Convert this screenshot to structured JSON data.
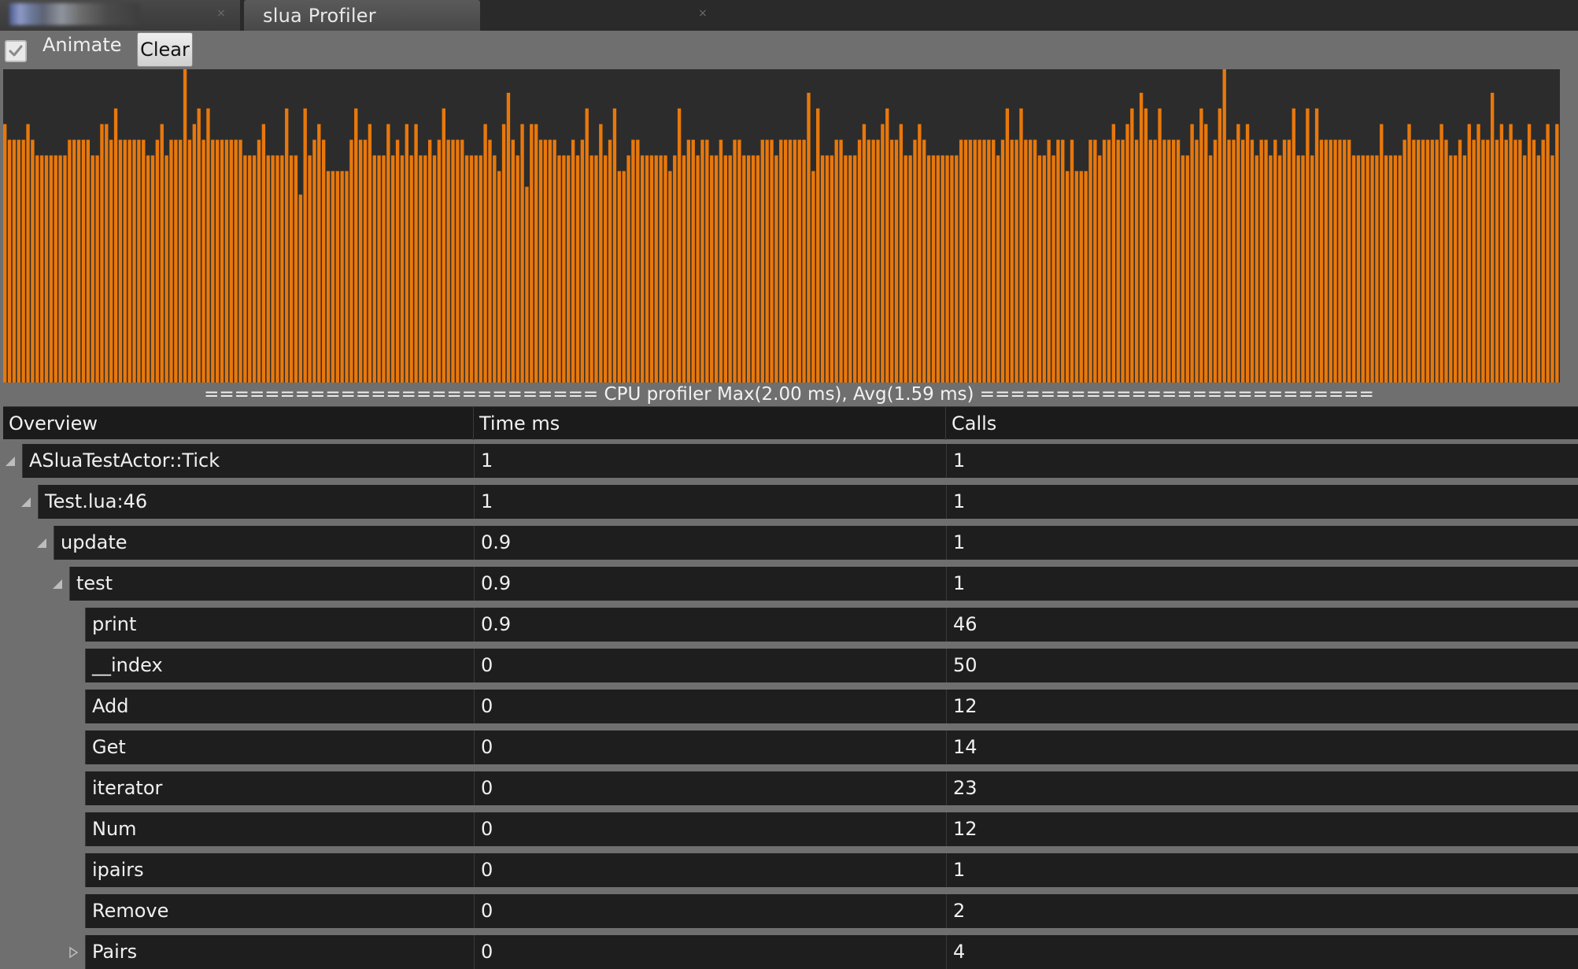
{
  "tabs": [
    {
      "label": "",
      "close_glyph": "×"
    },
    {
      "label": "slua Profiler",
      "close_glyph": "×"
    }
  ],
  "toolbar": {
    "animate_label": "Animate",
    "animate_checked": true,
    "clear_label": "Clear"
  },
  "colors": {
    "bar_fill": "#e8780c",
    "bar_background": "#2c2c2c",
    "panel_bg": "#6f6f6f"
  },
  "chart_data": {
    "type": "bar",
    "title": "",
    "xlabel": "",
    "ylabel": "",
    "ylim": [
      0,
      2.0
    ],
    "grid": false,
    "values": [
      1.65,
      1.55,
      1.55,
      1.55,
      1.55,
      1.65,
      1.55,
      1.45,
      1.45,
      1.45,
      1.45,
      1.45,
      1.45,
      1.45,
      1.55,
      1.55,
      1.55,
      1.55,
      1.55,
      1.45,
      1.45,
      1.65,
      1.65,
      1.55,
      1.75,
      1.55,
      1.55,
      1.55,
      1.55,
      1.55,
      1.55,
      1.45,
      1.45,
      1.55,
      1.65,
      1.45,
      1.55,
      1.55,
      1.55,
      2.0,
      1.55,
      1.65,
      1.75,
      1.55,
      1.75,
      1.55,
      1.55,
      1.55,
      1.55,
      1.55,
      1.55,
      1.55,
      1.45,
      1.45,
      1.45,
      1.55,
      1.65,
      1.45,
      1.45,
      1.45,
      1.45,
      1.75,
      1.45,
      1.45,
      1.2,
      1.75,
      1.45,
      1.55,
      1.65,
      1.55,
      1.35,
      1.35,
      1.35,
      1.35,
      1.35,
      1.55,
      1.75,
      1.55,
      1.55,
      1.65,
      1.45,
      1.45,
      1.45,
      1.65,
      1.45,
      1.55,
      1.45,
      1.65,
      1.45,
      1.65,
      1.45,
      1.45,
      1.55,
      1.45,
      1.55,
      1.75,
      1.55,
      1.55,
      1.55,
      1.55,
      1.45,
      1.45,
      1.45,
      1.45,
      1.65,
      1.55,
      1.45,
      1.35,
      1.65,
      1.85,
      1.55,
      1.45,
      1.65,
      1.25,
      1.65,
      1.65,
      1.55,
      1.55,
      1.55,
      1.55,
      1.45,
      1.45,
      1.45,
      1.55,
      1.45,
      1.55,
      1.75,
      1.45,
      1.45,
      1.65,
      1.45,
      1.55,
      1.75,
      1.35,
      1.35,
      1.45,
      1.55,
      1.55,
      1.45,
      1.45,
      1.45,
      1.45,
      1.45,
      1.45,
      1.35,
      1.45,
      1.75,
      1.45,
      1.55,
      1.55,
      1.45,
      1.55,
      1.55,
      1.45,
      1.45,
      1.55,
      1.45,
      1.45,
      1.55,
      1.55,
      1.45,
      1.45,
      1.45,
      1.45,
      1.55,
      1.55,
      1.55,
      1.45,
      1.55,
      1.55,
      1.55,
      1.55,
      1.55,
      1.55,
      1.85,
      1.35,
      1.75,
      1.45,
      1.45,
      1.45,
      1.55,
      1.55,
      1.45,
      1.45,
      1.45,
      1.55,
      1.65,
      1.55,
      1.55,
      1.55,
      1.65,
      1.75,
      1.55,
      1.55,
      1.65,
      1.45,
      1.45,
      1.55,
      1.65,
      1.55,
      1.45,
      1.45,
      1.45,
      1.45,
      1.45,
      1.45,
      1.45,
      1.55,
      1.55,
      1.55,
      1.55,
      1.55,
      1.55,
      1.55,
      1.55,
      1.45,
      1.55,
      1.75,
      1.55,
      1.55,
      1.75,
      1.55,
      1.55,
      1.55,
      1.45,
      1.45,
      1.55,
      1.45,
      1.55,
      1.55,
      1.35,
      1.55,
      1.35,
      1.35,
      1.35,
      1.55,
      1.55,
      1.45,
      1.55,
      1.55,
      1.65,
      1.55,
      1.55,
      1.65,
      1.75,
      1.55,
      1.85,
      1.75,
      1.55,
      1.55,
      1.75,
      1.55,
      1.55,
      1.55,
      1.55,
      1.45,
      1.45,
      1.65,
      1.55,
      1.75,
      1.65,
      1.45,
      1.55,
      1.75,
      2.0,
      1.55,
      1.55,
      1.65,
      1.55,
      1.65,
      1.55,
      1.45,
      1.55,
      1.55,
      1.45,
      1.55,
      1.45,
      1.55,
      1.55,
      1.75,
      1.45,
      1.45,
      1.75,
      1.45,
      1.75,
      1.55,
      1.55,
      1.55,
      1.55,
      1.55,
      1.55,
      1.55,
      1.45,
      1.45,
      1.45,
      1.45,
      1.45,
      1.45,
      1.65,
      1.45,
      1.45,
      1.45,
      1.45,
      1.55,
      1.65,
      1.55,
      1.55,
      1.55,
      1.55,
      1.55,
      1.55,
      1.65,
      1.55,
      1.45,
      1.45,
      1.55,
      1.45,
      1.65,
      1.55,
      1.65,
      1.55,
      1.55,
      1.85,
      1.55,
      1.65,
      1.55,
      1.65,
      1.55,
      1.55,
      1.45,
      1.65,
      1.55,
      1.45,
      1.55,
      1.65,
      1.45,
      1.65
    ]
  },
  "summary_text": "========================== CPU profiler Max(2.00 ms), Avg(1.59 ms) ==========================",
  "table": {
    "headers": {
      "overview": "Overview",
      "time": "Time ms",
      "calls": "Calls"
    },
    "rows": [
      {
        "name": "ASluaTestActor::Tick",
        "time": "1",
        "calls": "1",
        "expander": "expanded"
      },
      {
        "name": "Test.lua:46",
        "time": "1",
        "calls": "1",
        "expander": "expanded"
      },
      {
        "name": "update",
        "time": "0.9",
        "calls": "1",
        "expander": "expanded"
      },
      {
        "name": "test",
        "time": "0.9",
        "calls": "1",
        "expander": "expanded"
      },
      {
        "name": "print",
        "time": "0.9",
        "calls": "46",
        "expander": "none"
      },
      {
        "name": "__index",
        "time": "0",
        "calls": "50",
        "expander": "none"
      },
      {
        "name": "Add",
        "time": "0",
        "calls": "12",
        "expander": "none"
      },
      {
        "name": "Get",
        "time": "0",
        "calls": "14",
        "expander": "none"
      },
      {
        "name": "iterator",
        "time": "0",
        "calls": "23",
        "expander": "none"
      },
      {
        "name": "Num",
        "time": "0",
        "calls": "12",
        "expander": "none"
      },
      {
        "name": "ipairs",
        "time": "0",
        "calls": "1",
        "expander": "none"
      },
      {
        "name": "Remove",
        "time": "0",
        "calls": "2",
        "expander": "none"
      },
      {
        "name": "Pairs",
        "time": "0",
        "calls": "4",
        "expander": "collapsed"
      }
    ]
  }
}
